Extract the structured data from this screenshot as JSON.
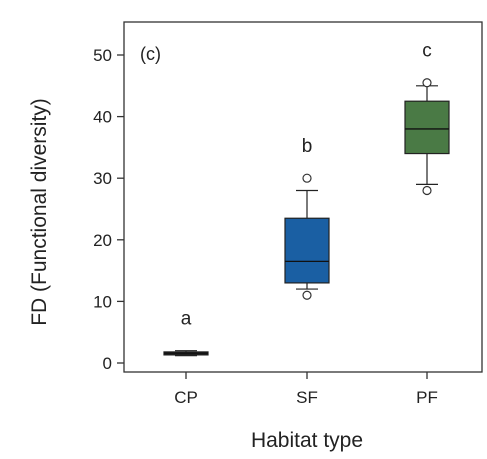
{
  "chart_data": {
    "type": "box",
    "panel_label": "(c)",
    "xlabel": "Habitat type",
    "ylabel": "FD (Functional diversity)",
    "ylim": [
      0,
      55
    ],
    "yticks": [
      0,
      10,
      20,
      30,
      40,
      50
    ],
    "grid": false,
    "categories": [
      "CP",
      "SF",
      "PF"
    ],
    "boxes": [
      {
        "category": "CP",
        "whisker_low": 1.2,
        "q1": 1.4,
        "median": 1.6,
        "q3": 1.8,
        "whisker_high": 2.0,
        "outliers": [],
        "color": "#1a1a1a",
        "letter": "a"
      },
      {
        "category": "SF",
        "whisker_low": 12,
        "q1": 13,
        "median": 16.5,
        "q3": 23.5,
        "whisker_high": 28,
        "outliers": [
          11,
          30
        ],
        "color": "#1a5fa3",
        "letter": "b"
      },
      {
        "category": "PF",
        "whisker_low": 29,
        "q1": 34,
        "median": 38,
        "q3": 42.5,
        "whisker_high": 45,
        "outliers": [
          28,
          45.5
        ],
        "color": "#4a7a45",
        "letter": "c"
      }
    ]
  }
}
